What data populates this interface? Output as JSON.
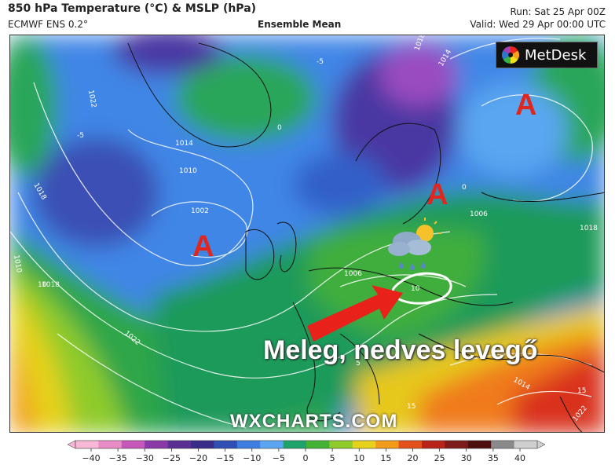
{
  "header": {
    "title": "850 hPa Temperature (°C) & MSLP (hPa)",
    "model": "ECMWF ENS 0.2°",
    "subtitle": "Ensemble Mean",
    "run": "Run: Sat 25 Apr 00Z",
    "valid": "Valid: Wed 29 Apr 00:00 UTC"
  },
  "logo": {
    "text": "MetDesk",
    "icon": "metdesk-logo-icon"
  },
  "pressure_systems": [
    {
      "label": "A",
      "type": "high-pressure"
    },
    {
      "label": "A",
      "type": "high-pressure"
    },
    {
      "label": "A",
      "type": "high-pressure"
    }
  ],
  "annotation": {
    "caption": "Meleg, nedves levegő",
    "arrow": "red-arrow-icon",
    "weather_icon": "sun-cloud-rain-icon"
  },
  "watermark": "WXCHARTS.COM",
  "isobar_labels": [
    "1022",
    "1018",
    "1014",
    "1010",
    "1006",
    "1002",
    "1018",
    "1022",
    "1006",
    "1010",
    "1014",
    "1018",
    "1014",
    "1018",
    "1022"
  ],
  "isotherm_labels": [
    "-5",
    "0",
    "-5",
    "0",
    "5",
    "10",
    "10",
    "15",
    "15"
  ],
  "colorbar": {
    "ticks": [
      "−40",
      "−35",
      "−30",
      "−25",
      "−20",
      "−15",
      "−10",
      "−5",
      "0",
      "5",
      "10",
      "15",
      "20",
      "25",
      "30",
      "35",
      "40"
    ],
    "colors": [
      "#f7b8d6",
      "#e98cc5",
      "#c558b8",
      "#8a3aa8",
      "#5a2f93",
      "#3a2d8a",
      "#2f4fb4",
      "#3f7de0",
      "#5aa6f0",
      "#1fa36c",
      "#44b335",
      "#8fcb2a",
      "#e6d21b",
      "#f29a1a",
      "#e3501c",
      "#b8231c",
      "#7d1a1a",
      "#4e0f0f",
      "#8a8a8a",
      "#cfcfcf"
    ]
  },
  "colors": {
    "high_label": "#e0271f",
    "border": "#333333"
  }
}
